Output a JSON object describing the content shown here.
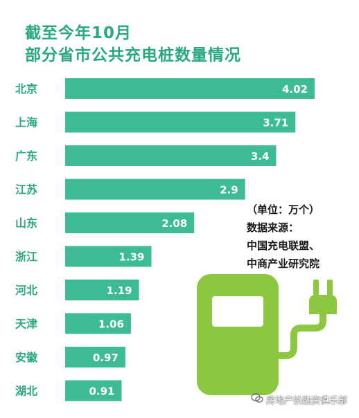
{
  "title_line1": "截至今年10月",
  "title_line2": "部分省市公共充电桩数量情况",
  "note": {
    "unit": "（单位：万个）",
    "source_label": "数据来源：",
    "source_line1": "中国充电联盟、",
    "source_line2": "中商产业研究院"
  },
  "watermark": "房地产投融资俱乐部",
  "icon_name": "ev-charger-icon",
  "colors": {
    "title": "#29a882",
    "bar": "#3dbb94",
    "label": "#29a882",
    "icon": "#8dc63f"
  },
  "chart_data": {
    "type": "bar",
    "orientation": "horizontal",
    "title": "截至今年10月 部分省市公共充电桩数量情况",
    "categories": [
      "北京",
      "上海",
      "广东",
      "江苏",
      "山东",
      "浙江",
      "河北",
      "天津",
      "安徽",
      "湖北"
    ],
    "values": [
      4.02,
      3.71,
      3.4,
      2.9,
      2.08,
      1.39,
      1.19,
      1.06,
      0.97,
      0.91
    ],
    "value_labels": [
      "4.02",
      "3.71",
      "3.4",
      "2.9",
      "2.08",
      "1.39",
      "1.19",
      "1.06",
      "0.97",
      "0.91"
    ],
    "unit": "万个",
    "xlim": [
      0,
      4.02
    ],
    "grid": false,
    "legend": "none"
  }
}
